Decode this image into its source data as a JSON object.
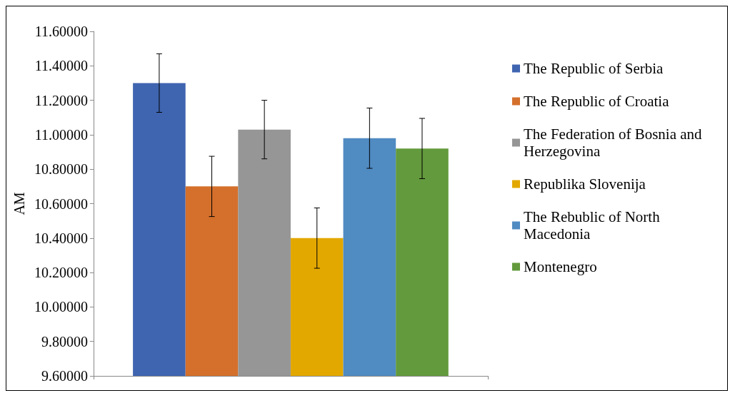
{
  "chart_data": {
    "type": "bar",
    "ylabel": "AM",
    "categories": [
      null
    ],
    "series": [
      {
        "name": "The Republic of Serbia",
        "color": "#3f64b0",
        "values": [
          11.3
        ],
        "errors": [
          0.17
        ]
      },
      {
        "name": "The Republic of Croatia",
        "color": "#d4702c",
        "values": [
          10.7
        ],
        "errors": [
          0.175
        ]
      },
      {
        "name": "The Federation of Bosnia and Herzegovina",
        "color": "#969696",
        "values": [
          11.03
        ],
        "errors": [
          0.17
        ]
      },
      {
        "name": "Republika Slovenija",
        "color": "#e3a800",
        "values": [
          10.4
        ],
        "errors": [
          0.175
        ]
      },
      {
        "name": "The Rebublic of North Macedonia",
        "color": "#508bc2",
        "values": [
          10.98
        ],
        "errors": [
          0.175
        ]
      },
      {
        "name": "Montenegro",
        "color": "#639a3d",
        "values": [
          10.92
        ],
        "errors": [
          0.175
        ]
      }
    ],
    "ylim": [
      9.6,
      11.6
    ],
    "yticks": [
      {
        "value": 9.6,
        "label": "9.60000"
      },
      {
        "value": 9.8,
        "label": "9.80000"
      },
      {
        "value": 10.0,
        "label": "10.00000"
      },
      {
        "value": 10.2,
        "label": "10.20000"
      },
      {
        "value": 10.4,
        "label": "10.40000"
      },
      {
        "value": 10.6,
        "label": "10.60000"
      },
      {
        "value": 10.8,
        "label": "10.80000"
      },
      {
        "value": 11.0,
        "label": "11.00000"
      },
      {
        "value": 11.2,
        "label": "11.20000"
      },
      {
        "value": 11.4,
        "label": "11.40000"
      },
      {
        "value": 11.6,
        "label": "11.60000"
      }
    ],
    "grid": false,
    "legend": "right"
  }
}
